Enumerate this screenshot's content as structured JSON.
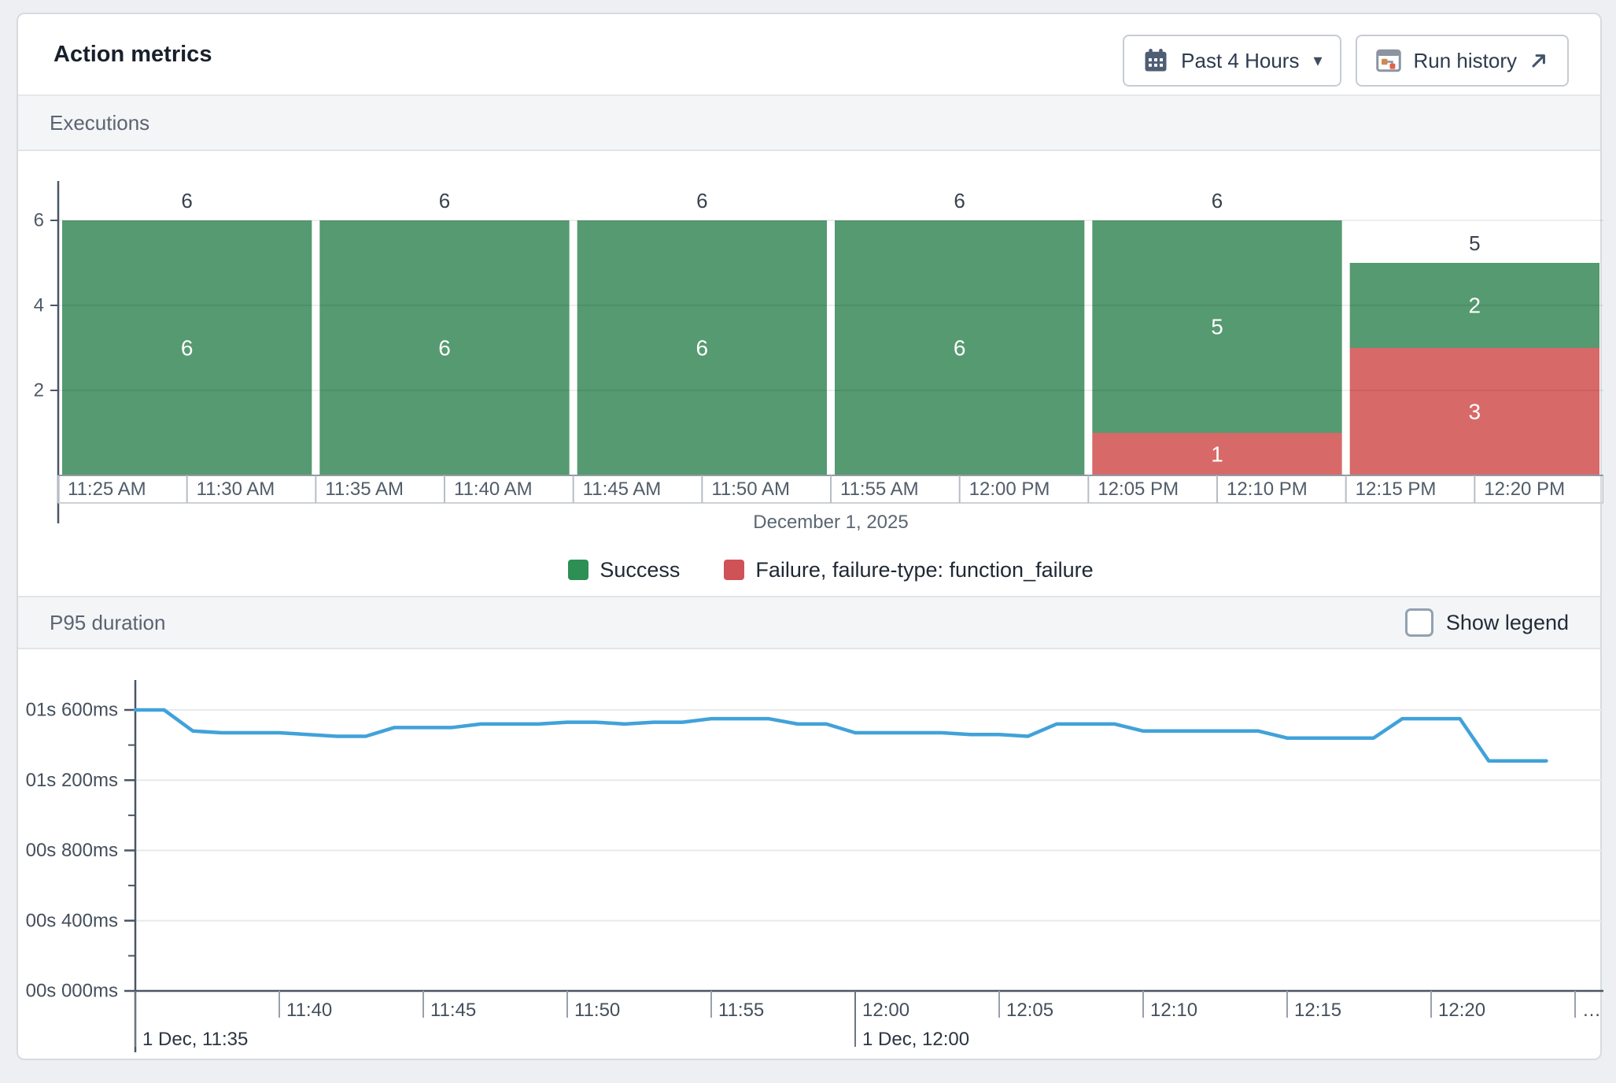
{
  "header": {
    "title": "Action metrics",
    "range_button": {
      "label": "Past 4 Hours",
      "caret": "▾"
    },
    "run_history_button": {
      "label": "Run history"
    }
  },
  "sections": {
    "executions": {
      "title": "Executions"
    },
    "p95": {
      "title": "P95 duration",
      "show_legend_label": "Show legend",
      "show_legend_checked": false
    }
  },
  "chart_data": [
    {
      "type": "bar",
      "title": "Executions",
      "stacked": true,
      "x_axis_date_caption": "December 1, 2025",
      "categories": [
        "11:25 AM",
        "11:35 AM",
        "11:45 AM",
        "11:55 AM",
        "12:05 PM",
        "12:15 PM"
      ],
      "series": [
        {
          "name": "Success",
          "color": "#559a70",
          "legend_color": "#2e8f55",
          "values": [
            6,
            6,
            6,
            6,
            5,
            2
          ]
        },
        {
          "name": "Failure, failure-type: function_failure",
          "color": "#d86969",
          "legend_color": "#cf5257",
          "values": [
            0,
            0,
            0,
            0,
            1,
            3
          ]
        }
      ],
      "totals": [
        6,
        6,
        6,
        6,
        6,
        5
      ],
      "x_tick_labels": [
        "11:25 AM",
        "11:30 AM",
        "11:35 AM",
        "11:40 AM",
        "11:45 AM",
        "11:50 AM",
        "11:55 AM",
        "12:00 PM",
        "12:05 PM",
        "12:10 PM",
        "12:15 PM",
        "12:20 PM"
      ],
      "y_ticks": [
        2,
        4,
        6
      ],
      "ylim": [
        0,
        6.9
      ],
      "grid": true,
      "legend_position": "bottom"
    },
    {
      "type": "line",
      "title": "P95 duration",
      "color": "#41a2d9",
      "ylim_seconds": [
        0,
        1.9
      ],
      "y_ticks": [
        {
          "label": "00s 000ms",
          "seconds": 0
        },
        {
          "label": "00s 400ms",
          "seconds": 0.4
        },
        {
          "label": "00s 800ms",
          "seconds": 0.8
        },
        {
          "label": "01s 200ms",
          "seconds": 1.2
        },
        {
          "label": "01s 600ms",
          "seconds": 1.6
        }
      ],
      "y_minor_step_seconds": 0.2,
      "x_tick_labels": [
        {
          "label": "11:40",
          "minute": 5
        },
        {
          "label": "11:45",
          "minute": 10
        },
        {
          "label": "11:50",
          "minute": 15
        },
        {
          "label": "11:55",
          "minute": 20
        },
        {
          "label": "12:00",
          "minute": 25
        },
        {
          "label": "12:05",
          "minute": 30
        },
        {
          "label": "12:10",
          "minute": 35
        },
        {
          "label": "12:15",
          "minute": 40
        },
        {
          "label": "12:20",
          "minute": 45
        },
        {
          "label": "…",
          "minute": 50
        }
      ],
      "x_day_labels": [
        {
          "label": "1 Dec, 11:35",
          "minute": 0
        },
        {
          "label": "1 Dec, 12:00",
          "minute": 25
        }
      ],
      "minutes": [
        0,
        1,
        2,
        3,
        4,
        5,
        6,
        7,
        8,
        9,
        10,
        11,
        12,
        13,
        14,
        15,
        16,
        17,
        18,
        19,
        20,
        21,
        22,
        23,
        24,
        25,
        26,
        27,
        28,
        29,
        30,
        31,
        32,
        33,
        34,
        35,
        36,
        37,
        38,
        39,
        40,
        41,
        42,
        43,
        44,
        45,
        46,
        47,
        48,
        49
      ],
      "p95_seconds": [
        1.6,
        1.6,
        1.48,
        1.47,
        1.47,
        1.47,
        1.46,
        1.45,
        1.45,
        1.5,
        1.5,
        1.5,
        1.52,
        1.52,
        1.52,
        1.53,
        1.53,
        1.52,
        1.53,
        1.53,
        1.55,
        1.55,
        1.55,
        1.52,
        1.52,
        1.47,
        1.47,
        1.47,
        1.47,
        1.46,
        1.46,
        1.45,
        1.52,
        1.52,
        1.52,
        1.48,
        1.48,
        1.48,
        1.48,
        1.48,
        1.44,
        1.44,
        1.44,
        1.44,
        1.55,
        1.55,
        1.55,
        1.31,
        1.31,
        1.31
      ]
    }
  ]
}
